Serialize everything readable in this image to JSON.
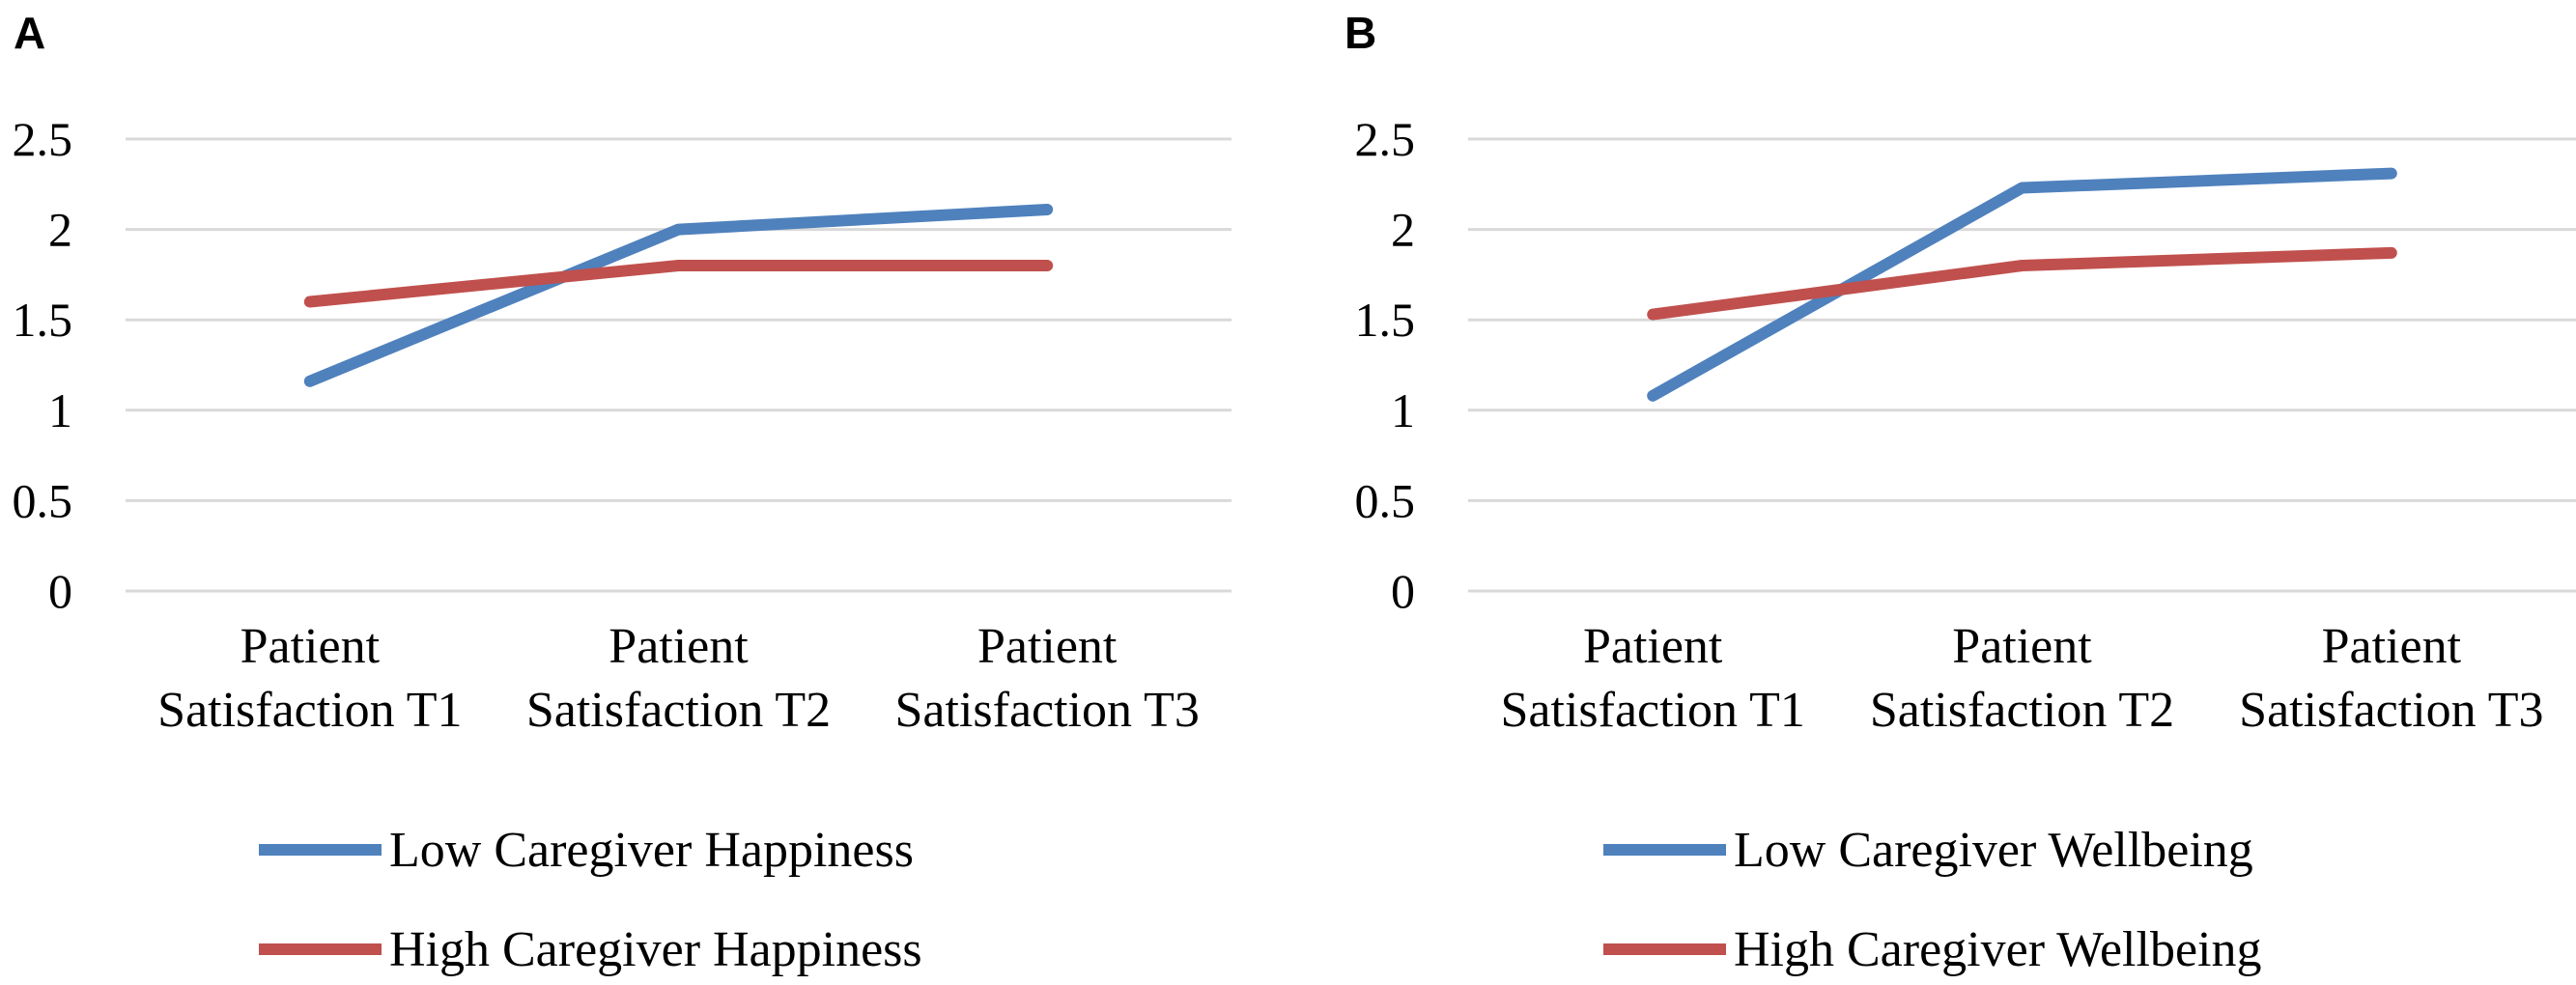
{
  "chart_data": [
    {
      "type": "line",
      "panel_label": "A",
      "categories": [
        [
          "Patient",
          "Satisfaction T1"
        ],
        [
          "Patient",
          "Satisfaction T2"
        ],
        [
          "Patient",
          "Satisfaction T3"
        ]
      ],
      "yticks": [
        "0",
        "0.5",
        "1",
        "1.5",
        "2",
        "2.5"
      ],
      "ylim": [
        0,
        2.5
      ],
      "grid": true,
      "legend_position": "bottom",
      "series": [
        {
          "name": "Low Caregiver Happiness",
          "color": "#4F81BD",
          "values": [
            1.16,
            2.0,
            2.11
          ]
        },
        {
          "name": "High Caregiver Happiness",
          "color": "#C0504D",
          "values": [
            1.6,
            1.8,
            1.8
          ]
        }
      ]
    },
    {
      "type": "line",
      "panel_label": "B",
      "categories": [
        [
          "Patient",
          "Satisfaction T1"
        ],
        [
          "Patient",
          "Satisfaction T2"
        ],
        [
          "Patient",
          "Satisfaction T3"
        ]
      ],
      "yticks": [
        "0",
        "0.5",
        "1",
        "1.5",
        "2",
        "2.5"
      ],
      "ylim": [
        0,
        2.5
      ],
      "grid": true,
      "legend_position": "bottom",
      "series": [
        {
          "name": "Low Caregiver Wellbeing",
          "color": "#4F81BD",
          "values": [
            1.08,
            2.23,
            2.31
          ]
        },
        {
          "name": "High Caregiver Wellbeing",
          "color": "#C0504D",
          "values": [
            1.53,
            1.8,
            1.87
          ]
        }
      ]
    }
  ]
}
